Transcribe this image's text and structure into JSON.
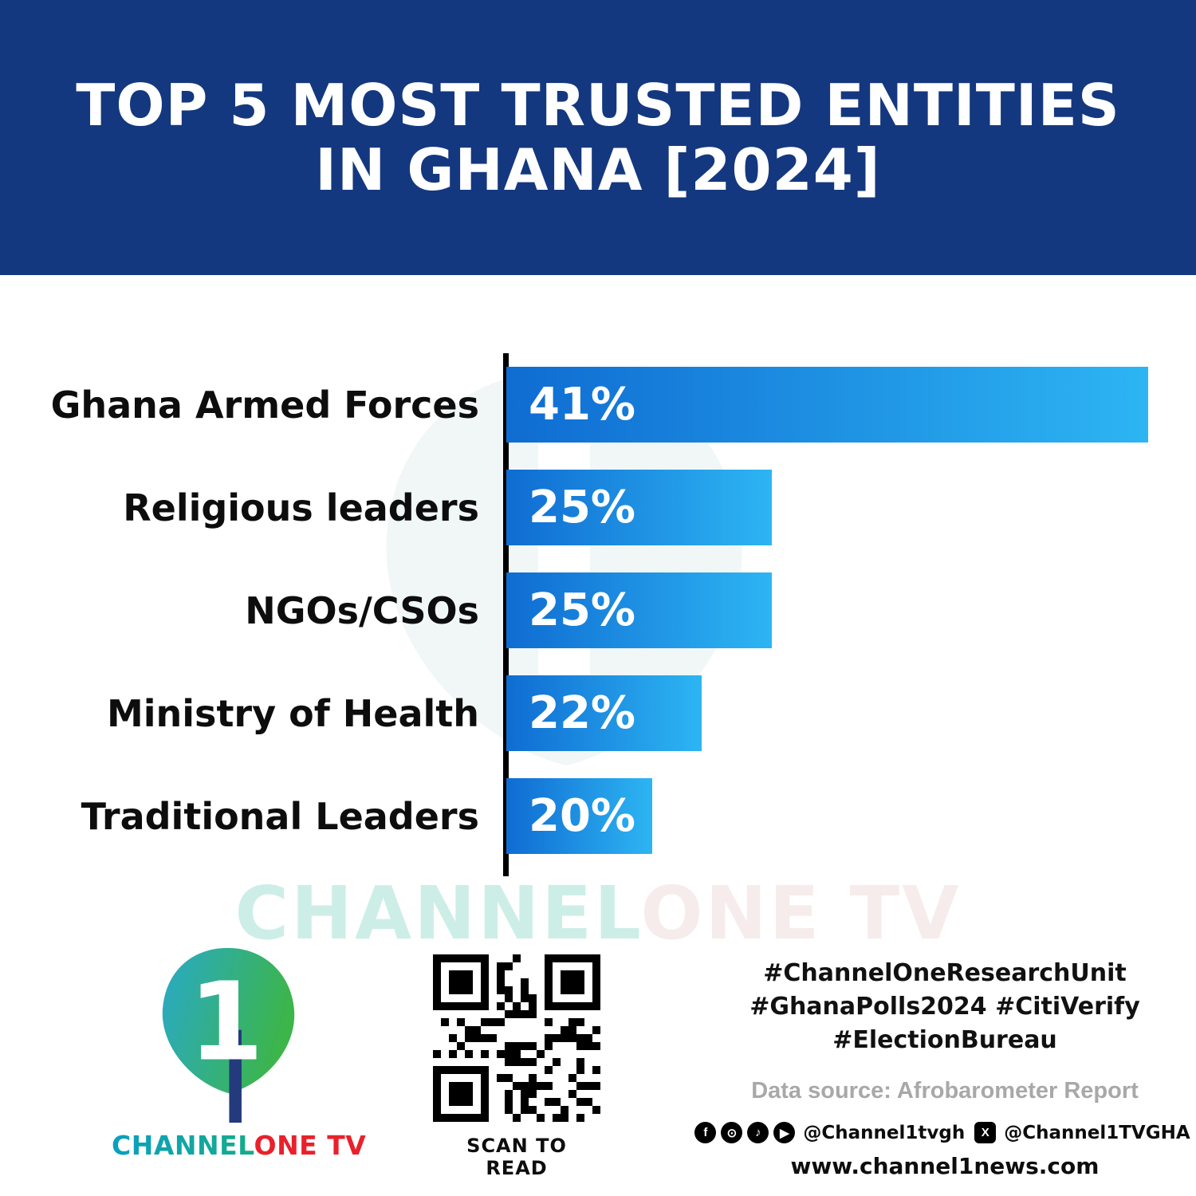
{
  "header": {
    "title_line1": "TOP 5 MOST TRUSTED ENTITIES",
    "title_line2": "IN GHANA [2024]"
  },
  "chart_data": {
    "type": "bar",
    "orientation": "horizontal",
    "title": "Top 5 Most Trusted Entities in Ghana [2024]",
    "categories": [
      "Ghana Armed Forces",
      "Religious leaders",
      "NGOs/CSOs",
      "Ministry of Health",
      "Traditional Leaders"
    ],
    "values": [
      41,
      25,
      25,
      22,
      20
    ],
    "value_labels": [
      "41%",
      "25%",
      "25%",
      "22%",
      "20%"
    ],
    "xlabel": "",
    "ylabel": "",
    "xlim": [
      0,
      45
    ],
    "grid": false,
    "legend": false,
    "layout": {
      "bar_width_pct": [
        100,
        41.4,
        41.4,
        30.4,
        22.7
      ],
      "value_label_position": "inside-left",
      "axis_line": "left-vertical-black"
    }
  },
  "watermark": {
    "part1": "CHANNEL",
    "part2": "ONE TV"
  },
  "footer": {
    "brand": {
      "channel": "CHANNEL",
      "rest": "ONE TV"
    },
    "qr_caption": "SCAN TO READ",
    "hashtags_line1": "#ChannelOneResearchUnit",
    "hashtags_line2": "#GhanaPolls2024 #CitiVerify",
    "hashtags_line3": "#ElectionBureau",
    "data_source": "Data source: Afrobarometer Report",
    "social": {
      "handle1": "@Channel1tvgh",
      "handle2": "@Channel1TVGHA",
      "icons": [
        "facebook-icon",
        "instagram-icon",
        "tiktok-icon",
        "youtube-icon",
        "x-icon"
      ]
    },
    "website": "www.channel1news.com"
  },
  "colors": {
    "header_bg": "#14387f",
    "bar_start": "#0f6cd2",
    "bar_end": "#2db5f3",
    "brand_red": "#e8212b",
    "watermark_green": "#cdeee7",
    "watermark_pink": "#f6ecec",
    "source_gray": "#a8a8a8"
  }
}
